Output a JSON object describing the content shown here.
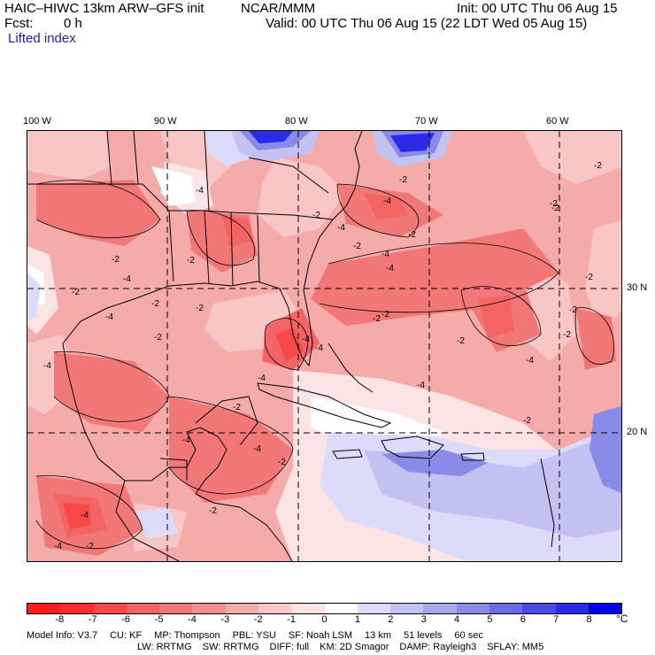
{
  "header": {
    "title": "HAIC–HIWC 13km ARW–GFS init",
    "center": "NCAR/MMM",
    "init": "Init: 00 UTC Thu 06 Aug 15",
    "fcst_label": "Fcst:",
    "fcst_value": "0 h",
    "valid": "Valid: 00 UTC Thu 06 Aug 15 (22 LDT Wed 05 Aug 15)",
    "field": "Lifted index"
  },
  "map": {
    "longitude_labels": [
      "100 W",
      "90 W",
      "80 W",
      "70 W",
      "60 W"
    ],
    "latitude_labels": [
      "30 N",
      "20 N"
    ],
    "contour_labels": [
      "-2",
      "-4",
      "-2",
      "-4",
      "-2",
      "-4",
      "-2",
      "-4",
      "-2",
      "-2",
      "-4",
      "-2",
      "-2",
      "-4",
      "-2",
      "-4",
      "-2",
      "-4",
      "-2",
      "-4",
      "-2",
      "-2",
      "-4",
      "-2",
      "-2",
      "-4",
      "-2",
      "-4",
      "-2",
      "-2",
      "-4",
      "-2",
      "-2",
      "-2",
      "-4",
      "-2",
      "-2",
      "-4",
      "-4",
      "-4",
      "-2"
    ]
  },
  "colorbar": {
    "tick_labels": [
      "-8",
      "-7",
      "-6",
      "-5",
      "-4",
      "-3",
      "-2",
      "-1",
      "0",
      "1",
      "2",
      "3",
      "4",
      "5",
      "6",
      "7",
      "8"
    ],
    "unit": "°C",
    "colors": [
      "#ff1a1a",
      "#ff2d2d",
      "#f84848",
      "#f46464",
      "#f27878",
      "#f38e8e",
      "#f6abab",
      "#f9c6c6",
      "#fde4e4",
      "#ffffff",
      "#dcdcfa",
      "#c3c3f3",
      "#a7a7ee",
      "#8a8ae8",
      "#6c6ce6",
      "#4a4ae6",
      "#2a2ae8",
      "#0000e8"
    ]
  },
  "model_info": {
    "line1": [
      {
        "key": "Model Info:",
        "val": "V3.7"
      },
      {
        "key": "CU:",
        "val": "KF"
      },
      {
        "key": "MP:",
        "val": "Thompson"
      },
      {
        "key": "PBL:",
        "val": "YSU"
      },
      {
        "key": "SF:",
        "val": "Noah LSM"
      },
      {
        "key": "",
        "val": "13 km"
      },
      {
        "key": "",
        "val": "51 levels"
      },
      {
        "key": "",
        "val": "60 sec"
      }
    ],
    "line2": [
      {
        "key": "LW:",
        "val": "RRTMG"
      },
      {
        "key": "SW:",
        "val": "RRTMG"
      },
      {
        "key": "DIFF:",
        "val": "full"
      },
      {
        "key": "KM:",
        "val": "2D Smagor"
      },
      {
        "key": "DAMP:",
        "val": "Rayleigh3"
      },
      {
        "key": "SFLAY:",
        "val": "MM5"
      }
    ]
  }
}
